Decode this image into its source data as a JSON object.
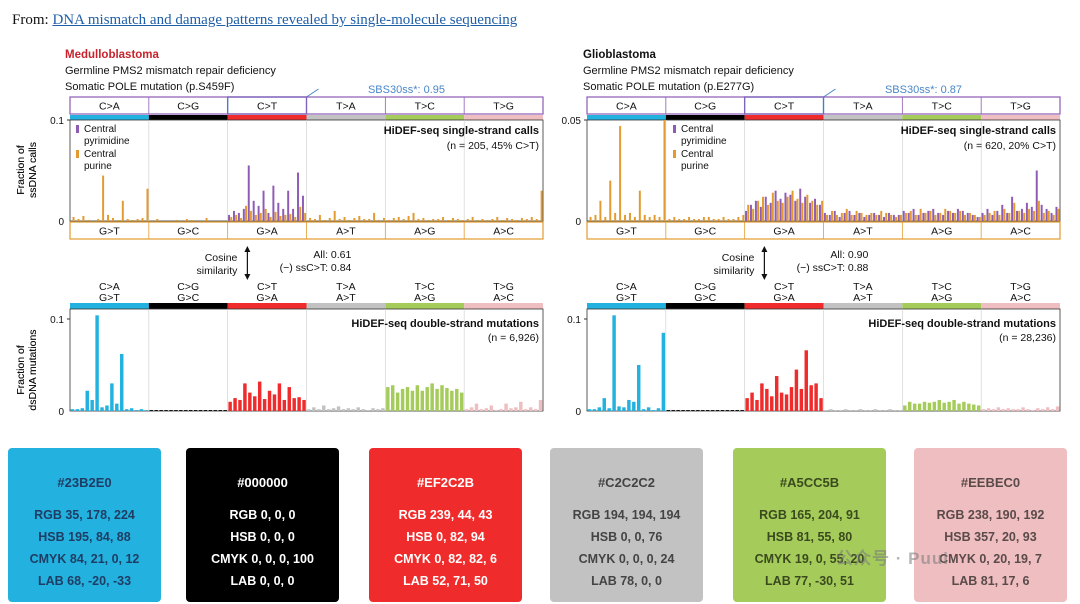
{
  "header": {
    "prefix": "From: ",
    "link": "DNA mismatch and damage patterns revealed by single-molecule sequencing"
  },
  "colors": {
    "blue": "#23B2E0",
    "black": "#000000",
    "red": "#EF2C2B",
    "gray": "#C2C2C2",
    "green": "#A5CC5B",
    "pink": "#EEBEC0",
    "purple": "#8e5bb5",
    "orange": "#e39b2f",
    "sbs_box": "#4a86c8",
    "title_red": "#c8232c"
  },
  "panels": [
    {
      "title": "Medulloblastoma",
      "line1": "Germline PMS2 mismatch repair deficiency",
      "line2": "Somatic POLE mutation (p.S459F)",
      "sbs": "SBS30ss*: 0.95",
      "top_labels": [
        "C>A",
        "C>G",
        "C>T",
        "T>A",
        "T>C",
        "T>G"
      ],
      "bottom_labels": [
        "G>T",
        "G>C",
        "G>A",
        "A>T",
        "A>G",
        "A>C"
      ],
      "ss_ylabel": [
        "Fraction of",
        "ssDNA calls"
      ],
      "ss_ticks": [
        "0.1",
        "0"
      ],
      "legend_pyr": [
        "Central",
        "pyrimidine"
      ],
      "legend_pur": [
        "Central",
        "purine"
      ],
      "ss_title": "HiDEF-seq single-strand calls",
      "ss_n": "(n = 205, 45% C>T)",
      "cos_label": [
        "Cosine",
        "similarity"
      ],
      "cos_all": "All: 0.61",
      "cos_ss": "(−) ssC>T: 0.84",
      "ds_labels_top": [
        "C>A",
        "C>G",
        "C>T",
        "T>A",
        "T>C",
        "T>G"
      ],
      "ds_labels_bot": [
        "G>T",
        "G>C",
        "G>A",
        "A>T",
        "A>G",
        "A>C"
      ],
      "ds_ylabel": [
        "Fraction of",
        "dsDNA mutations"
      ],
      "ds_ticks": [
        "0.1",
        "0"
      ],
      "ds_title": "HiDEF-seq double-strand mutations",
      "ds_n": "(n = 6,926)"
    },
    {
      "title": "Glioblastoma",
      "line1": "Germline PMS2 mismatch repair deficiency",
      "line2": "Somatic POLE mutation (p.E277G)",
      "sbs": "SBS30ss*: 0.87",
      "top_labels": [
        "C>A",
        "C>G",
        "C>T",
        "T>A",
        "T>C",
        "T>G"
      ],
      "bottom_labels": [
        "G>T",
        "G>C",
        "G>A",
        "A>T",
        "A>G",
        "A>C"
      ],
      "ss_ylabel": [
        "Fraction of",
        "ssDNA calls"
      ],
      "ss_ticks": [
        "0.05",
        "0"
      ],
      "legend_pyr": [
        "Central",
        "pyrimidine"
      ],
      "legend_pur": [
        "Central",
        "purine"
      ],
      "ss_title": "HiDEF-seq single-strand calls",
      "ss_n": "(n = 620, 20% C>T)",
      "cos_label": [
        "Cosine",
        "similarity"
      ],
      "cos_all": "All: 0.90",
      "cos_ss": "(−) ssC>T: 0.88",
      "ds_labels_top": [
        "C>A",
        "C>G",
        "C>T",
        "T>A",
        "T>C",
        "T>G"
      ],
      "ds_labels_bot": [
        "G>T",
        "G>C",
        "G>A",
        "A>T",
        "A>G",
        "A>C"
      ],
      "ds_ylabel": [
        "Fraction of",
        "dsDNA mutations"
      ],
      "ds_ticks": [
        "0.1",
        "0"
      ],
      "ds_title": "HiDEF-seq double-strand mutations",
      "ds_n": "(n = 28,236)"
    }
  ],
  "chart_data": [
    {
      "type": "bar",
      "title": "Medulloblastoma HiDEF-seq single-strand calls",
      "ylabel": "Fraction of ssDNA calls",
      "ylim": [
        0,
        0.1
      ],
      "series": [
        {
          "name": "Central pyrimidine",
          "values": [
            0,
            0,
            0,
            0,
            0,
            0,
            0,
            0,
            0,
            0,
            0,
            0,
            0,
            0,
            0,
            0,
            0,
            0,
            0,
            0,
            0,
            0,
            0,
            0,
            0,
            0,
            0,
            0,
            0,
            0,
            0,
            0,
            0.006,
            0.01,
            0.008,
            0.012,
            0.055,
            0.02,
            0.015,
            0.03,
            0.008,
            0.035,
            0.018,
            0.012,
            0.03,
            0.012,
            0.048,
            0.025,
            0,
            0,
            0,
            0,
            0,
            0,
            0,
            0,
            0,
            0,
            0,
            0,
            0,
            0,
            0,
            0,
            0,
            0,
            0,
            0,
            0,
            0,
            0,
            0,
            0,
            0,
            0,
            0,
            0,
            0,
            0,
            0,
            0,
            0,
            0,
            0,
            0,
            0,
            0,
            0,
            0,
            0,
            0,
            0,
            0,
            0,
            0,
            0
          ]
        },
        {
          "name": "Central purine",
          "values": [
            0.004,
            0.002,
            0.005,
            0.001,
            0,
            0.002,
            0.045,
            0.006,
            0.003,
            0.001,
            0.02,
            0.002,
            0.001,
            0.002,
            0.003,
            0.032,
            0,
            0.002,
            0,
            0,
            0,
            0.001,
            0,
            0.002,
            0.001,
            0,
            0,
            0.003,
            0,
            0,
            0,
            0,
            0.004,
            0.006,
            0.003,
            0.015,
            0.01,
            0.006,
            0.008,
            0.012,
            0.004,
            0.009,
            0.005,
            0.006,
            0.007,
            0.004,
            0.014,
            0.008,
            0.003,
            0.002,
            0.006,
            0.001,
            0.003,
            0.01,
            0.002,
            0.004,
            0.001,
            0.003,
            0.005,
            0.002,
            0.002,
            0.008,
            0.001,
            0.003,
            0.001,
            0.003,
            0.004,
            0.002,
            0.005,
            0.008,
            0.002,
            0.003,
            0.001,
            0.002,
            0.002,
            0.004,
            0.001,
            0.003,
            0.002,
            0.001,
            0.002,
            0.004,
            0.001,
            0.002,
            0.001,
            0.002,
            0.004,
            0.001,
            0.003,
            0.002,
            0.001,
            0.003,
            0.002,
            0.004,
            0.002,
            0.03
          ]
        }
      ]
    },
    {
      "type": "bar",
      "title": "Medulloblastoma HiDEF-seq double-strand mutations",
      "ylabel": "Fraction of dsDNA mutations",
      "ylim": [
        0,
        0.1
      ],
      "values": [
        0.002,
        0.002,
        0.003,
        0.022,
        0.012,
        0.105,
        0.004,
        0.006,
        0.03,
        0.008,
        0.062,
        0.002,
        0.003,
        0.001,
        0.002,
        0.001,
        0.001,
        0.001,
        0.001,
        0.001,
        0.001,
        0.001,
        0.001,
        0.001,
        0.001,
        0.001,
        0.001,
        0.001,
        0.001,
        0.001,
        0.001,
        0.001,
        0.01,
        0.014,
        0.012,
        0.03,
        0.02,
        0.016,
        0.032,
        0.013,
        0.022,
        0.018,
        0.03,
        0.012,
        0.026,
        0.014,
        0.015,
        0.012,
        0.002,
        0.004,
        0.002,
        0.006,
        0.002,
        0.003,
        0.005,
        0.002,
        0.003,
        0.002,
        0.004,
        0.002,
        0.001,
        0.003,
        0.002,
        0.003,
        0.026,
        0.028,
        0.02,
        0.024,
        0.026,
        0.022,
        0.028,
        0.022,
        0.026,
        0.03,
        0.024,
        0.028,
        0.025,
        0.022,
        0.024,
        0.02,
        0.002,
        0.004,
        0.008,
        0.002,
        0.003,
        0.006,
        0.001,
        0.002,
        0.008,
        0.003,
        0.004,
        0.01,
        0.002,
        0.004,
        0.002,
        0.012
      ]
    },
    {
      "type": "bar",
      "title": "Glioblastoma HiDEF-seq single-strand calls",
      "ylabel": "Fraction of ssDNA calls",
      "ylim": [
        0,
        0.05
      ],
      "series": [
        {
          "name": "Central pyrimidine",
          "values": [
            0,
            0,
            0,
            0,
            0,
            0,
            0,
            0,
            0,
            0,
            0,
            0,
            0,
            0,
            0,
            0,
            0,
            0,
            0,
            0,
            0,
            0,
            0,
            0,
            0,
            0,
            0,
            0,
            0,
            0,
            0,
            0,
            0.005,
            0.008,
            0.01,
            0.007,
            0.012,
            0.009,
            0.015,
            0.011,
            0.014,
            0.013,
            0.01,
            0.016,
            0.012,
            0.009,
            0.011,
            0.008,
            0.004,
            0.003,
            0.005,
            0.002,
            0.004,
            0.005,
            0.003,
            0.004,
            0.002,
            0.003,
            0.004,
            0.003,
            0.002,
            0.004,
            0.003,
            0.003,
            0.005,
            0.004,
            0.006,
            0.003,
            0.004,
            0.005,
            0.006,
            0.004,
            0.003,
            0.005,
            0.004,
            0.006,
            0.005,
            0.004,
            0.003,
            0.002,
            0.004,
            0.006,
            0.003,
            0.005,
            0.008,
            0.004,
            0.012,
            0.005,
            0.006,
            0.009,
            0.007,
            0.025,
            0.008,
            0.006,
            0.004,
            0.007
          ]
        },
        {
          "name": "Central purine",
          "values": [
            0.002,
            0.003,
            0.01,
            0.002,
            0.02,
            0.004,
            0.047,
            0.003,
            0.004,
            0.002,
            0.015,
            0.003,
            0.002,
            0.003,
            0.002,
            0.05,
            0.001,
            0.002,
            0.001,
            0.001,
            0.002,
            0.001,
            0.001,
            0.002,
            0.002,
            0.001,
            0.001,
            0.002,
            0.001,
            0.001,
            0.002,
            0.003,
            0.008,
            0.006,
            0.01,
            0.012,
            0.008,
            0.014,
            0.01,
            0.009,
            0.012,
            0.015,
            0.011,
            0.009,
            0.013,
            0.01,
            0.008,
            0.01,
            0.003,
            0.005,
            0.003,
            0.004,
            0.006,
            0.003,
            0.005,
            0.004,
            0.003,
            0.004,
            0.003,
            0.005,
            0.004,
            0.003,
            0.002,
            0.003,
            0.004,
            0.005,
            0.003,
            0.006,
            0.004,
            0.005,
            0.003,
            0.004,
            0.006,
            0.005,
            0.004,
            0.005,
            0.003,
            0.004,
            0.003,
            0.002,
            0.003,
            0.004,
            0.005,
            0.003,
            0.006,
            0.004,
            0.009,
            0.005,
            0.004,
            0.006,
            0.005,
            0.01,
            0.004,
            0.005,
            0.003,
            0.006
          ]
        }
      ]
    },
    {
      "type": "bar",
      "title": "Glioblastoma HiDEF-seq double-strand mutations",
      "ylabel": "Fraction of dsDNA mutations",
      "ylim": [
        0,
        0.1
      ],
      "values": [
        0.002,
        0.002,
        0.004,
        0.014,
        0.003,
        0.105,
        0.005,
        0.004,
        0.012,
        0.01,
        0.05,
        0.002,
        0.004,
        0.001,
        0.003,
        0.085,
        0.001,
        0.001,
        0.001,
        0.001,
        0.001,
        0.001,
        0.001,
        0.001,
        0.001,
        0.001,
        0.001,
        0.001,
        0.001,
        0.001,
        0.001,
        0.001,
        0.014,
        0.02,
        0.012,
        0.03,
        0.024,
        0.016,
        0.038,
        0.02,
        0.018,
        0.026,
        0.045,
        0.024,
        0.066,
        0.028,
        0.03,
        0.014,
        0.001,
        0.002,
        0.001,
        0.001,
        0.002,
        0.001,
        0.001,
        0.002,
        0.001,
        0.001,
        0.002,
        0.001,
        0.001,
        0.002,
        0.001,
        0.001,
        0.006,
        0.01,
        0.008,
        0.008,
        0.01,
        0.009,
        0.01,
        0.012,
        0.009,
        0.01,
        0.012,
        0.008,
        0.01,
        0.008,
        0.007,
        0.006,
        0.002,
        0.003,
        0.002,
        0.004,
        0.002,
        0.003,
        0.002,
        0.002,
        0.004,
        0.002,
        0.001,
        0.003,
        0.002,
        0.004,
        0.002,
        0.005
      ]
    }
  ],
  "swatches": [
    {
      "hex": "#23B2E0",
      "rgb": "RGB 35, 178, 224",
      "hsb": "HSB 195, 84, 88",
      "cmyk": "CMYK 84, 21, 0, 12",
      "lab": "LAB 68, -20, -33",
      "bg": "#23B2E0",
      "fg": "#1f3d63"
    },
    {
      "hex": "#000000",
      "rgb": "RGB 0, 0, 0",
      "hsb": "HSB 0, 0, 0",
      "cmyk": "CMYK 0, 0, 0, 100",
      "lab": "LAB 0, 0, 0",
      "bg": "#000000",
      "fg": "#ffffff"
    },
    {
      "hex": "#EF2C2B",
      "rgb": "RGB 239, 44, 43",
      "hsb": "HSB 0, 82, 94",
      "cmyk": "CMYK 0, 82, 82, 6",
      "lab": "LAB 52, 71, 50",
      "bg": "#EF2C2B",
      "fg": "#ffffff"
    },
    {
      "hex": "#C2C2C2",
      "rgb": "RGB 194, 194, 194",
      "hsb": "HSB 0, 0, 76",
      "cmyk": "CMYK 0, 0, 0, 24",
      "lab": "LAB 78, 0, 0",
      "bg": "#C2C2C2",
      "fg": "#444444"
    },
    {
      "hex": "#A5CC5B",
      "rgb": "RGB 165, 204, 91",
      "hsb": "HSB 81, 55, 80",
      "cmyk": "CMYK 19, 0, 55, 20",
      "lab": "LAB 77, -30, 51",
      "bg": "#A5CC5B",
      "fg": "#3a4a1e"
    },
    {
      "hex": "#EEBEC0",
      "rgb": "RGB 238, 190, 192",
      "hsb": "HSB 357, 20, 93",
      "cmyk": "CMYK 0, 20, 19, 7",
      "lab": "LAB 81, 17, 6",
      "bg": "#EEBEC0",
      "fg": "#5a4a4a"
    }
  ],
  "watermark": "公众号 · Puui"
}
